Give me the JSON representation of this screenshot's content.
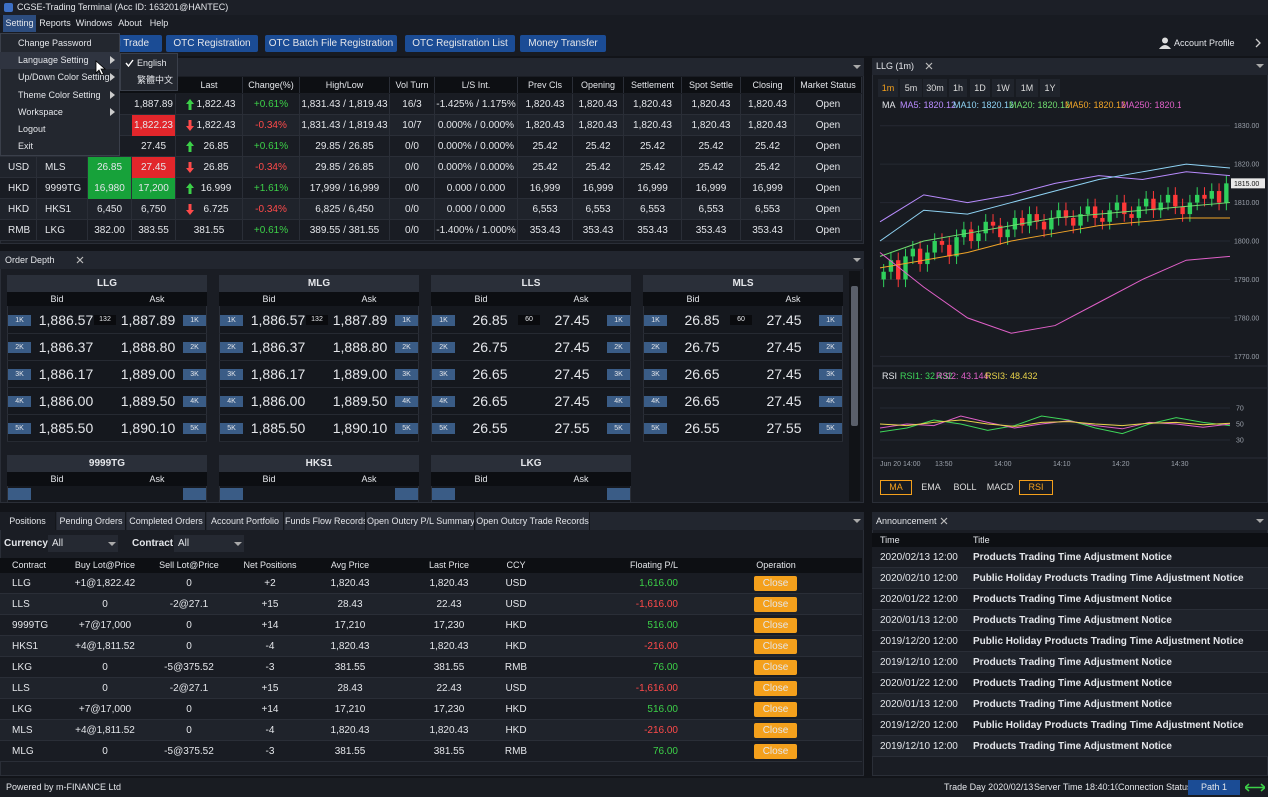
{
  "window": {
    "title": "CGSE-Trading Terminal  (Acc ID: 163201@HANTEC)"
  },
  "menu": {
    "items": [
      "Setting",
      "Reports",
      "Windows",
      "About",
      "Help"
    ],
    "active": 0,
    "setting_items": [
      "Change Password",
      "Language Setting",
      "Up/Down Color Setting",
      "Theme Color Setting",
      "Workspace",
      "Logout",
      "Exit"
    ],
    "submenu_items": [
      "English",
      "繁體中文"
    ],
    "checked": 0
  },
  "toolbar": {
    "buttons": [
      "al Trade",
      "OTC Registration",
      "OTC Batch File Registration",
      "OTC Registration List",
      "Money Transfer"
    ],
    "account": "Account Profile"
  },
  "quotes": {
    "headers": [
      null,
      null,
      null,
      null,
      "Last",
      "Change(%)",
      "High/Low",
      "Vol Turn",
      "L/S Int.",
      "Prev Cls",
      "Opening",
      "Settlement",
      "Spot Settle",
      "Closing",
      "Market Status"
    ],
    "rows": [
      {
        "cells": [
          null,
          null,
          null,
          "1,887.89",
          "1,822.43",
          "+0.61%",
          "1,831.43 / 1,819.43",
          "16/3",
          "-1.425% / 1.175%",
          "1,820.43",
          "1,820.43",
          "1,820.43",
          "1,820.43",
          "1,820.43",
          "Open"
        ],
        "dir": "up",
        "bid_hl": null,
        "ask_hl": null
      },
      {
        "cells": [
          null,
          null,
          null,
          "1,822.23",
          "1,822.43",
          "-0.34%",
          "1,831.43 / 1,819.43",
          "10/7",
          "0.000% / 0.000%",
          "1,820.43",
          "1,820.43",
          "1,820.43",
          "1,820.43",
          "1,820.43",
          "Open"
        ],
        "dir": "down",
        "bid_hl": null,
        "ask_hl": "red"
      },
      {
        "cells": [
          null,
          null,
          null,
          "27.45",
          "26.85",
          "+0.61%",
          "29.85 / 26.85",
          "0/0",
          "0.000% / 0.000%",
          "25.42",
          "25.42",
          "25.42",
          "25.42",
          "25.42",
          "Open"
        ],
        "dir": "up",
        "bid_hl": null,
        "ask_hl": null
      },
      {
        "cells": [
          "USD",
          "MLS",
          "26.85",
          "27.45",
          "26.85",
          "-0.34%",
          "29.85 / 26.85",
          "0/0",
          "0.000% / 0.000%",
          "25.42",
          "25.42",
          "25.42",
          "25.42",
          "25.42",
          "Open"
        ],
        "dir": "down",
        "bid_hl": "green",
        "ask_hl": "red"
      },
      {
        "cells": [
          "HKD",
          "9999TG",
          "16,980",
          "17,200",
          "16.999",
          "+1.61%",
          "17,999 / 16,999",
          "0/0",
          "0.000 / 0.000",
          "16,999",
          "16,999",
          "16,999",
          "16,999",
          "16,999",
          "Open"
        ],
        "dir": "up",
        "bid_hl": "green",
        "ask_hl": "green"
      },
      {
        "cells": [
          "HKD",
          "HKS1",
          "6,450",
          "6,750",
          "6.725",
          "-0.34%",
          "6,825 / 6,450",
          "0/0",
          "0.000 / 0.000",
          "6,553",
          "6,553",
          "6,553",
          "6,553",
          "6,553",
          "Open"
        ],
        "dir": "down",
        "bid_hl": null,
        "ask_hl": null
      },
      {
        "cells": [
          "RMB",
          "LKG",
          "382.00",
          "383.55",
          "381.55",
          "+0.61%",
          "389.55 / 381.55",
          "0/0",
          "-1.400% / 1.000%",
          "353.43",
          "353.43",
          "353.43",
          "353.43",
          "353.43",
          "Open"
        ],
        "dir": null,
        "bid_hl": null,
        "ask_hl": null
      }
    ]
  },
  "depth": {
    "title": "Order Depth",
    "bid_label": "Bid",
    "ask_label": "Ask",
    "qty": [
      "1K",
      "2K",
      "3K",
      "4K",
      "5K"
    ],
    "books": [
      {
        "name": "LLG",
        "spread": "132",
        "bids": [
          "1,886.57",
          "1,886.37",
          "1,886.17",
          "1,886.00",
          "1,885.50"
        ],
        "asks": [
          "1,887.89",
          "1,888.80",
          "1,889.00",
          "1,889.50",
          "1,890.10"
        ]
      },
      {
        "name": "MLG",
        "spread": "132",
        "bids": [
          "1,886.57",
          "1,886.37",
          "1,886.17",
          "1,886.00",
          "1,885.50"
        ],
        "asks": [
          "1,887.89",
          "1,888.80",
          "1,889.00",
          "1,889.50",
          "1,890.10"
        ]
      },
      {
        "name": "LLS",
        "spread": "60",
        "bids": [
          "26.85",
          "26.75",
          "26.65",
          "26.65",
          "26.55"
        ],
        "asks": [
          "27.45",
          "27.45",
          "27.45",
          "27.45",
          "27.55"
        ]
      },
      {
        "name": "MLS",
        "spread": "60",
        "bids": [
          "26.85",
          "26.75",
          "26.65",
          "26.65",
          "26.55"
        ],
        "asks": [
          "27.45",
          "27.45",
          "27.45",
          "27.45",
          "27.55"
        ]
      }
    ],
    "more": [
      "9999TG",
      "HKS1",
      "LKG"
    ]
  },
  "chart": {
    "title": "LLG (1m)",
    "intervals": [
      "1m",
      "5m",
      "30m",
      "1h",
      "1D",
      "1W",
      "1M",
      "1Y"
    ],
    "interval_active": 0,
    "legend_title": "MA",
    "ylim": [
      1768,
      1832
    ],
    "yticks": [
      {
        "value": 1830,
        "label": "1830.00"
      },
      {
        "value": 1820,
        "label": "1820.00"
      },
      {
        "value": 1810,
        "label": "1810.00"
      },
      {
        "value": 1800,
        "label": "1800.00"
      },
      {
        "value": 1790,
        "label": "1790.00"
      },
      {
        "value": 1780,
        "label": "1780.00"
      },
      {
        "value": 1770,
        "label": "1770.00"
      }
    ],
    "last_price": {
      "value": 1815,
      "label": "1815.00"
    },
    "up_color": "#2fd05c",
    "down_color": "#ff3838",
    "candles": [
      [
        1790,
        1794,
        1788,
        1792
      ],
      [
        1792,
        1797,
        1790,
        1795
      ],
      [
        1795,
        1797,
        1788,
        1790
      ],
      [
        1790,
        1798,
        1788,
        1796
      ],
      [
        1796,
        1800,
        1794,
        1798
      ],
      [
        1798,
        1800,
        1792,
        1794
      ],
      [
        1794,
        1799,
        1792,
        1797
      ],
      [
        1797,
        1802,
        1795,
        1800
      ],
      [
        1800,
        1802,
        1797,
        1799
      ],
      [
        1799,
        1801,
        1794,
        1796
      ],
      [
        1796,
        1803,
        1794,
        1801
      ],
      [
        1801,
        1805,
        1799,
        1803
      ],
      [
        1803,
        1805,
        1798,
        1800
      ],
      [
        1800,
        1804,
        1798,
        1802
      ],
      [
        1802,
        1807,
        1800,
        1805
      ],
      [
        1805,
        1807,
        1802,
        1804
      ],
      [
        1804,
        1806,
        1799,
        1801
      ],
      [
        1801,
        1805,
        1799,
        1803
      ],
      [
        1803,
        1808,
        1801,
        1806
      ],
      [
        1806,
        1808,
        1802,
        1804
      ],
      [
        1804,
        1809,
        1802,
        1807
      ],
      [
        1807,
        1809,
        1803,
        1805
      ],
      [
        1805,
        1807,
        1801,
        1803
      ],
      [
        1803,
        1808,
        1801,
        1806
      ],
      [
        1806,
        1810,
        1804,
        1808
      ],
      [
        1808,
        1810,
        1804,
        1806
      ],
      [
        1806,
        1808,
        1802,
        1804
      ],
      [
        1804,
        1809,
        1802,
        1807
      ],
      [
        1807,
        1811,
        1805,
        1809
      ],
      [
        1809,
        1811,
        1804,
        1806
      ],
      [
        1806,
        1808,
        1803,
        1805
      ],
      [
        1805,
        1810,
        1803,
        1808
      ],
      [
        1808,
        1812,
        1806,
        1810
      ],
      [
        1810,
        1812,
        1805,
        1807
      ],
      [
        1807,
        1809,
        1804,
        1806
      ],
      [
        1806,
        1811,
        1804,
        1809
      ],
      [
        1809,
        1813,
        1807,
        1811
      ],
      [
        1811,
        1813,
        1806,
        1808
      ],
      [
        1808,
        1812,
        1806,
        1810
      ],
      [
        1810,
        1814,
        1808,
        1812
      ],
      [
        1812,
        1814,
        1807,
        1809
      ],
      [
        1809,
        1811,
        1805,
        1807
      ],
      [
        1807,
        1812,
        1805,
        1810
      ],
      [
        1810,
        1814,
        1808,
        1812
      ],
      [
        1812,
        1814,
        1809,
        1811
      ],
      [
        1811,
        1815,
        1809,
        1813
      ],
      [
        1813,
        1815,
        1808,
        1810
      ],
      [
        1810,
        1817,
        1808,
        1815
      ]
    ],
    "series": [
      {
        "name": "MA5: 1820.12",
        "color": "#b98cff",
        "values": [
          1805,
          1812,
          1810,
          1812,
          1815,
          1817,
          1816,
          1818,
          1817
        ]
      },
      {
        "name": "MA10: 1820.12",
        "color": "#8fd3f4",
        "values": [
          1800,
          1808,
          1807,
          1810,
          1813,
          1816,
          1818,
          1820,
          1819
        ]
      },
      {
        "name": "MA20: 1820.12",
        "color": "#6fdc6f",
        "values": [
          1796,
          1800,
          1802,
          1804,
          1806,
          1807,
          1808,
          1809,
          1810
        ]
      },
      {
        "name": "MA50: 1820.12",
        "color": "#f0a428",
        "values": [
          1793,
          1795,
          1797,
          1800,
          1802,
          1804,
          1805,
          1806,
          1806
        ]
      },
      {
        "name": "MA250: 1820.12",
        "color": "#e060c8",
        "values": [
          1797,
          1788,
          1780,
          1776,
          1778,
          1784,
          1790,
          1795,
          1796
        ]
      }
    ],
    "rsi": {
      "title": "RSI",
      "ylim": [
        10,
        90
      ],
      "yticks": [
        70,
        50,
        30
      ],
      "series": [
        {
          "name": "RSI1: 32.432",
          "color": "#3ed65a",
          "values": [
            40,
            45,
            55,
            50,
            42,
            48,
            60,
            55,
            45,
            38,
            50,
            58,
            52,
            48
          ]
        },
        {
          "name": "RSI2: 43.144",
          "color": "#e060c8",
          "values": [
            45,
            50,
            48,
            60,
            52,
            45,
            50,
            54,
            48,
            44,
            52,
            50,
            46,
            50
          ]
        },
        {
          "name": "RSI3: 48.432",
          "color": "#e8d24a",
          "values": [
            50,
            48,
            52,
            55,
            50,
            47,
            52,
            53,
            50,
            48,
            51,
            52,
            49,
            51
          ]
        }
      ]
    },
    "xlabels": [
      "Jun 20 14:00",
      "13:50",
      "14:00",
      "14:10",
      "14:20",
      "14:30"
    ],
    "indicator_tabs": [
      "MA",
      "EMA",
      "BOLL",
      "MACD",
      "RSI"
    ],
    "indicator_selected": [
      0,
      4
    ]
  },
  "positions": {
    "tabs": [
      "Positions",
      "Pending Orders",
      "Completed Orders",
      "Account Portfolio",
      "Funds Flow Records",
      "Open Outcry P/L Summary",
      "Open Outcry Trade Records"
    ],
    "tab_active": 0,
    "filters": [
      {
        "label": "Currency",
        "value": "All"
      },
      {
        "label": "Contract",
        "value": "All"
      }
    ],
    "headers": [
      "Contract",
      "Buy Lot@Price",
      "Sell Lot@Price",
      "Net Positions",
      "Avg Price",
      "Last Price",
      "CCY",
      "Floating P/L",
      "Operation"
    ],
    "button": "Close",
    "rows": [
      [
        "LLG",
        "+1@1,822.42",
        "0",
        "+2",
        "1,820.43",
        "1,820.43",
        "USD",
        "1,616.00"
      ],
      [
        "LLS",
        "0",
        "-2@27.1",
        "+15",
        "28.43",
        "22.43",
        "USD",
        "-1,616.00"
      ],
      [
        "9999TG",
        "+7@17,000",
        "0",
        "+14",
        "17,210",
        "17,230",
        "HKD",
        "516.00"
      ],
      [
        "HKS1",
        "+4@1,811.52",
        "0",
        "-4",
        "1,820.43",
        "1,820.43",
        "HKD",
        "-216.00"
      ],
      [
        "LKG",
        "0",
        "-5@375.52",
        "-3",
        "381.55",
        "381.55",
        "RMB",
        "76.00"
      ],
      [
        "LLS",
        "0",
        "-2@27.1",
        "+15",
        "28.43",
        "22.43",
        "USD",
        "-1,616.00"
      ],
      [
        "LKG",
        "+7@17,000",
        "0",
        "+14",
        "17,210",
        "17,230",
        "HKD",
        "516.00"
      ],
      [
        "MLS",
        "+4@1,811.52",
        "0",
        "-4",
        "1,820.43",
        "1,820.43",
        "HKD",
        "-216.00"
      ],
      [
        "MLG",
        "0",
        "-5@375.52",
        "-3",
        "381.55",
        "381.55",
        "RMB",
        "76.00"
      ]
    ]
  },
  "announcement": {
    "title": "Announcement",
    "headers": [
      "Time",
      "Title"
    ],
    "rows": [
      [
        "2020/02/13 12:00",
        "Products Trading Time Adjustment Notice"
      ],
      [
        "2020/02/10 12:00",
        "Public Holiday Products Trading Time Adjustment Notice"
      ],
      [
        "2020/01/22 12:00",
        "Products Trading Time Adjustment Notice"
      ],
      [
        "2020/01/13 12:00",
        "Products Trading Time Adjustment Notice"
      ],
      [
        "2019/12/20 12:00",
        "Public Holiday Products Trading Time Adjustment Notice"
      ],
      [
        "2019/12/10 12:00",
        "Products Trading Time Adjustment Notice"
      ],
      [
        "2020/01/22 12:00",
        "Products Trading Time Adjustment Notice"
      ],
      [
        "2020/01/13 12:00",
        "Products Trading Time Adjustment Notice"
      ],
      [
        "2019/12/20 12:00",
        "Public Holiday Products Trading Time Adjustment Notice"
      ],
      [
        "2019/12/10 12:00",
        "Products Trading Time Adjustment Notice"
      ]
    ]
  },
  "status": {
    "powered": "Powered by m-FINANCE Ltd",
    "trade_day": "Trade Day 2020/02/13",
    "server_time": "Server Time 18:40:10",
    "connection": "Connection Status",
    "path": "Path 1"
  }
}
